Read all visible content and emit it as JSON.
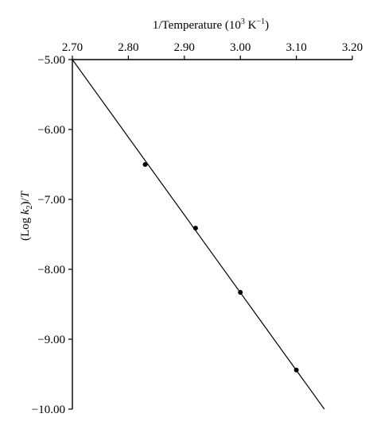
{
  "chart_data": {
    "type": "scatter",
    "xlabel": "1/Temperature (10",
    "xlabel_exp": "3",
    "xlabel_unit": " K",
    "xlabel_unit_exp": "−1",
    "xlabel_close": ")",
    "ylabel_open": "(Log ",
    "ylabel_var": "k",
    "ylabel_sub": "2",
    "ylabel_close": ")/",
    "ylabel_T": "T",
    "x_axis_position": "top",
    "xlim": [
      2.7,
      3.2
    ],
    "ylim": [
      -10.0,
      -5.0
    ],
    "xticks": [
      2.7,
      2.8,
      2.9,
      3.0,
      3.1,
      3.2
    ],
    "xtick_labels": [
      "2.70",
      "2.80",
      "2.90",
      "3.00",
      "3.10",
      "3.20"
    ],
    "yticks": [
      -5.0,
      -6.0,
      -7.0,
      -8.0,
      -9.0,
      -10.0
    ],
    "ytick_labels": [
      "−5.00",
      "−6.00",
      "−7.00",
      "−8.00",
      "−9.00",
      "−10.00"
    ],
    "grid": false,
    "series": [
      {
        "x": [
          2.83,
          2.92,
          3.0,
          3.1
        ],
        "y": [
          -6.5,
          -7.41,
          -8.33,
          -9.44
        ]
      }
    ],
    "fit_line": {
      "x": [
        2.7,
        3.15
      ],
      "y": [
        -5.0,
        -10.0
      ]
    }
  }
}
